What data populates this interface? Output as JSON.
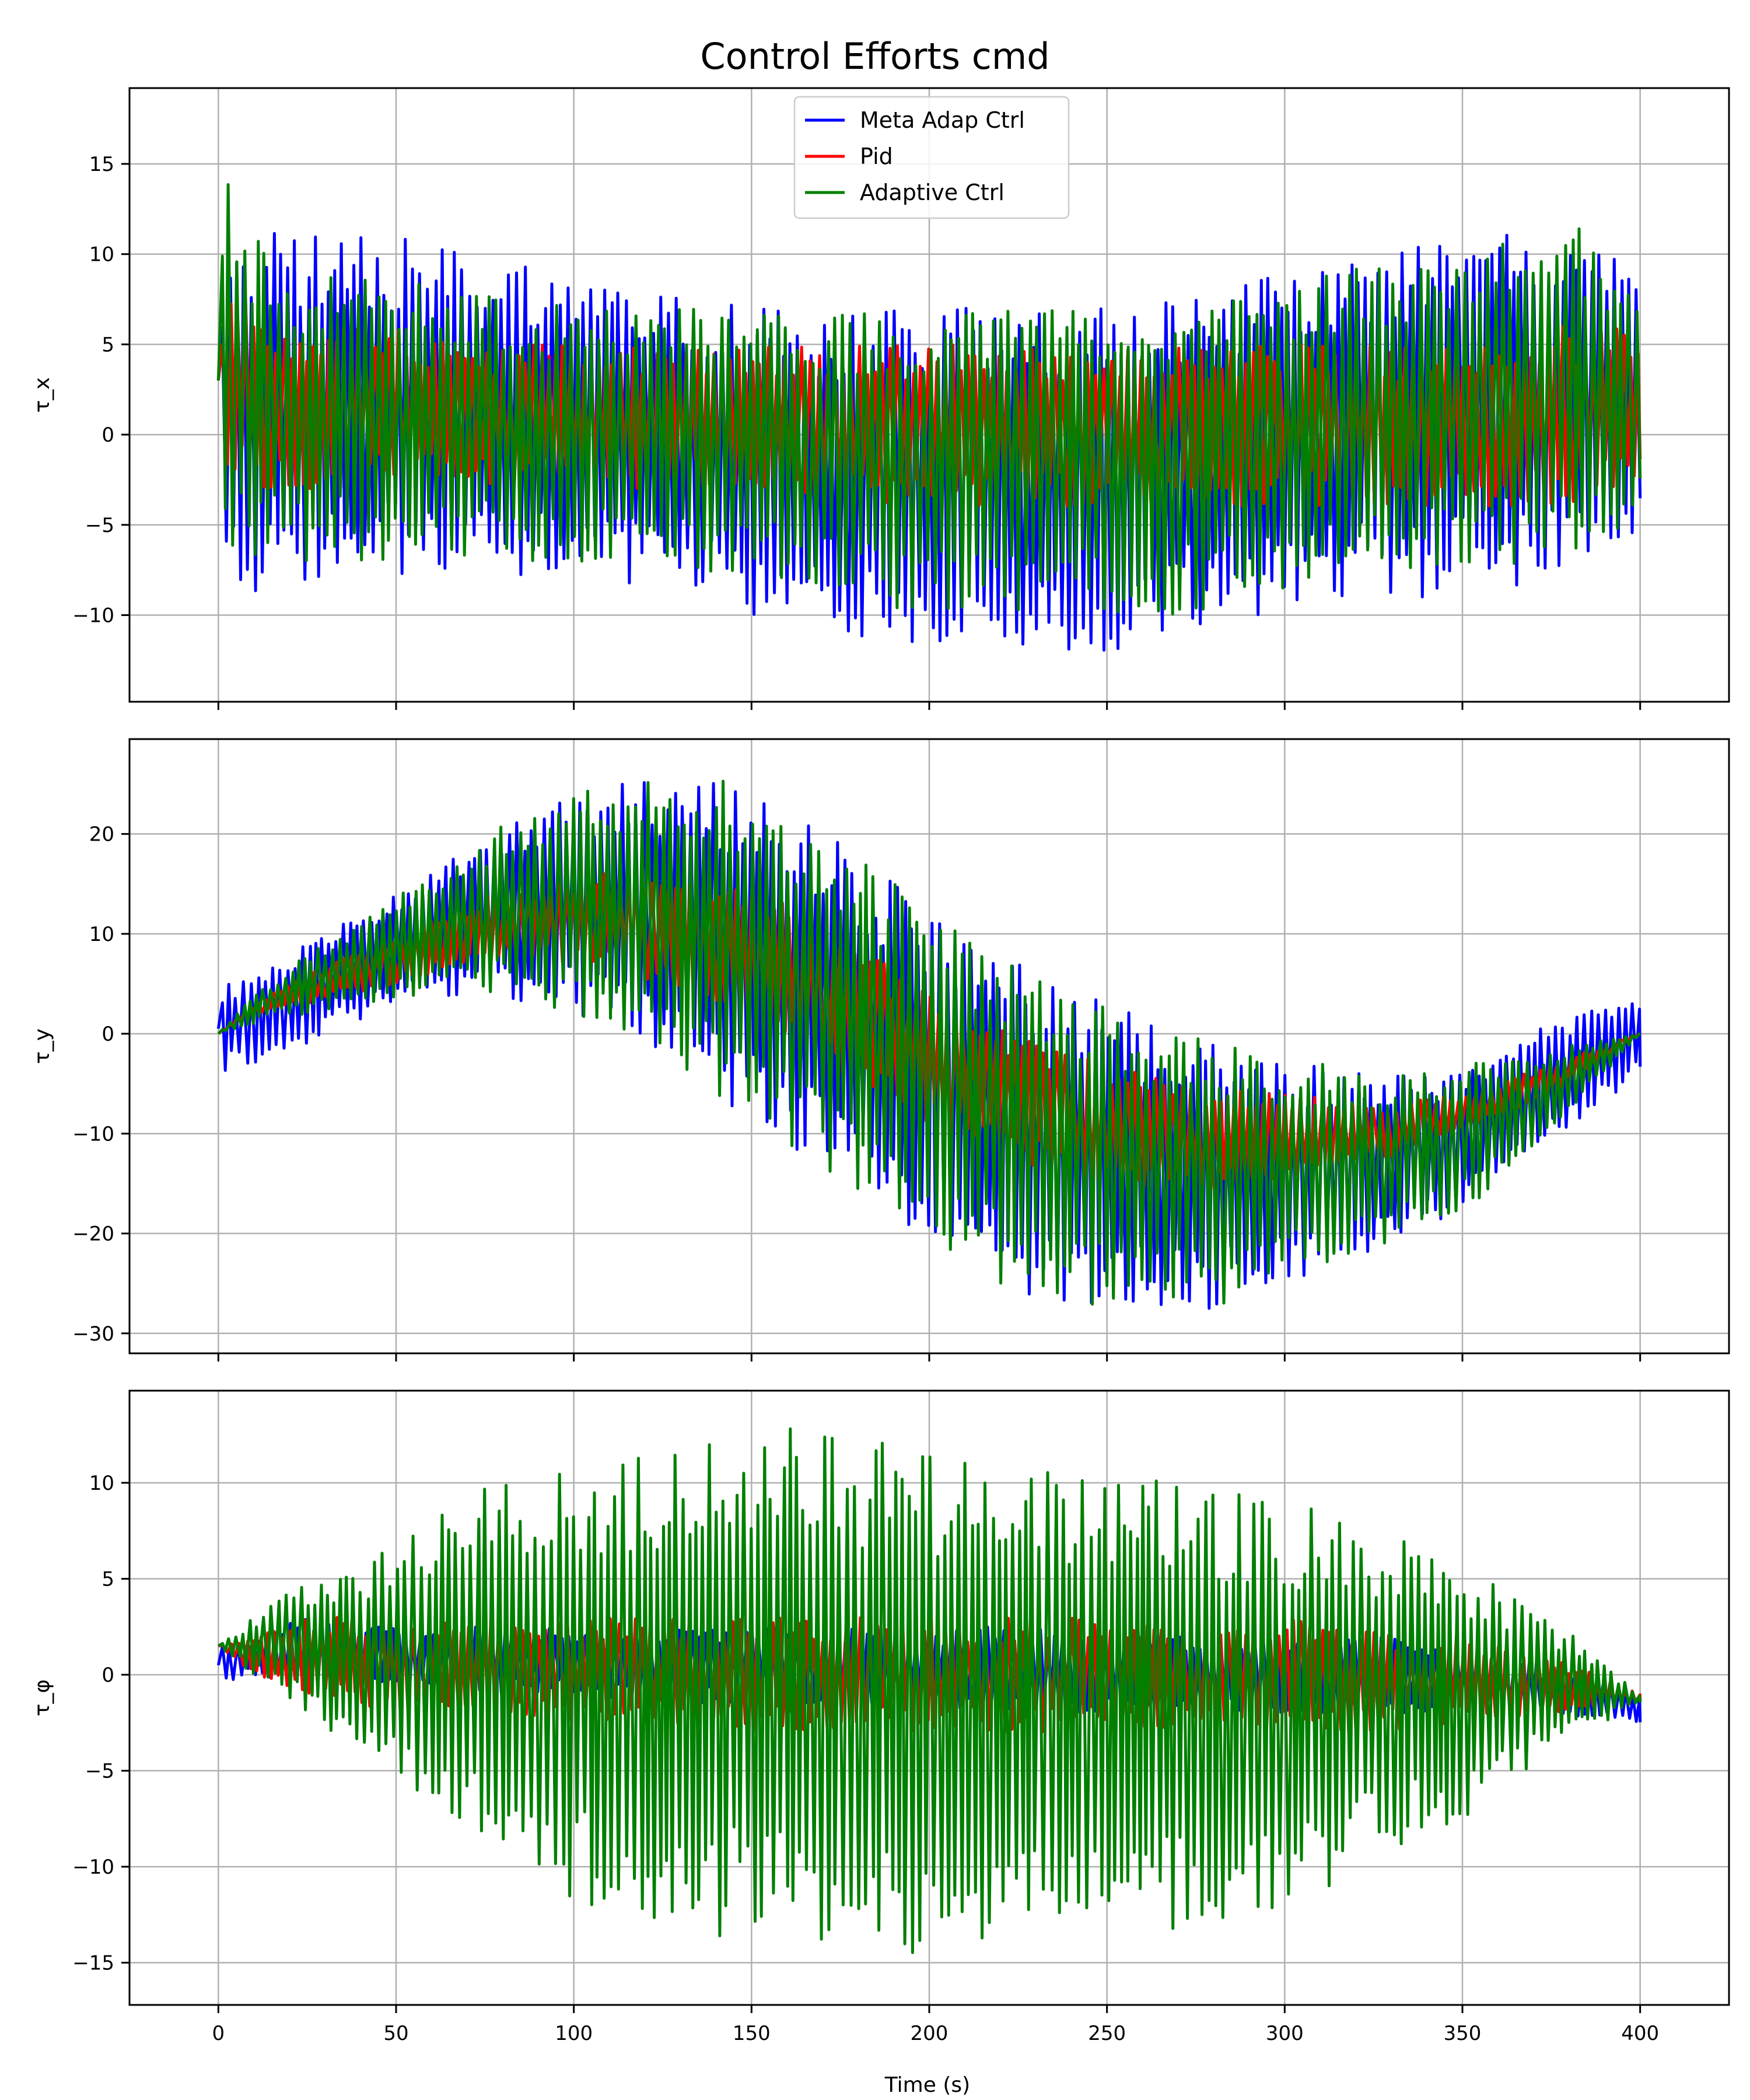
{
  "chart_data": {
    "type": "line",
    "title": "Control Efforts cmd",
    "xlabel": "Time (s)",
    "legend": {
      "placement": "top-center of first subplot",
      "entries": [
        {
          "name": "Meta Adap Ctrl",
          "color": "#0000ff"
        },
        {
          "name": "Pid",
          "color": "#ff0000"
        },
        {
          "name": "Adaptive Ctrl",
          "color": "#008000"
        }
      ]
    },
    "x_ticks": [
      "0",
      "50",
      "100",
      "150",
      "200",
      "250",
      "300",
      "350",
      "400"
    ],
    "xlim": [
      -25,
      425
    ],
    "grid": true,
    "subplots": [
      {
        "ylabel": "τ_x",
        "ylim": [
          -14.8,
          19.2
        ],
        "y_ticks": [
          {
            "value": -10,
            "label": "−10"
          },
          {
            "value": -5,
            "label": "−5"
          },
          {
            "value": 0,
            "label": "0"
          },
          {
            "value": 5,
            "label": "5"
          },
          {
            "value": 10,
            "label": "10"
          },
          {
            "value": 15,
            "label": "15"
          }
        ],
        "envelope_points": {
          "t": [
            0,
            2,
            10,
            25,
            50,
            75,
            100,
            125,
            150,
            175,
            200,
            225,
            250,
            275,
            300,
            325,
            350,
            375,
            400
          ],
          "meta_upper": [
            3,
            12,
            12,
            11,
            11,
            10,
            9,
            8,
            7,
            7,
            7,
            7,
            7,
            8,
            9,
            10,
            11,
            12,
            11
          ],
          "meta_lower": [
            3,
            -9,
            -9,
            -8,
            -8,
            -8,
            -8,
            -9,
            -10,
            -11,
            -12,
            -12,
            -12,
            -11,
            -10,
            -9,
            -9,
            -8,
            -6
          ],
          "adaptive_upper": [
            3,
            16,
            11,
            9,
            9,
            8,
            7,
            7,
            7,
            7,
            7,
            7,
            7,
            8,
            9,
            10,
            10,
            13,
            9
          ],
          "adaptive_lower": [
            3,
            -6,
            -7,
            -7,
            -7,
            -7,
            -7,
            -8,
            -8,
            -9,
            -10,
            -10,
            -10,
            -10,
            -9,
            -8,
            -8,
            -7,
            -5
          ],
          "pid_upper": [
            3,
            9,
            7,
            6,
            6,
            5,
            5,
            5,
            5,
            5,
            5,
            5,
            5,
            5,
            5,
            5,
            5,
            6,
            6
          ],
          "pid_lower": [
            3,
            -3,
            -3,
            -3,
            -3,
            -3,
            -3,
            -3,
            -3,
            -4,
            -4,
            -4,
            -4,
            -4,
            -4,
            -4,
            -4,
            -4,
            -3
          ]
        }
      },
      {
        "ylabel": "τ_y",
        "ylim": [
          -32,
          29.5
        ],
        "y_ticks": [
          {
            "value": -30,
            "label": "−30"
          },
          {
            "value": -20,
            "label": "−20"
          },
          {
            "value": -10,
            "label": "−10"
          },
          {
            "value": 0,
            "label": "0"
          },
          {
            "value": 10,
            "label": "10"
          },
          {
            "value": 20,
            "label": "20"
          }
        ],
        "envelope_points": {
          "t": [
            0,
            10,
            25,
            50,
            75,
            100,
            125,
            150,
            175,
            200,
            225,
            250,
            275,
            300,
            325,
            350,
            375,
            400
          ],
          "meta_upper": [
            5,
            6,
            9,
            14,
            20,
            24,
            26,
            25,
            20,
            12,
            7,
            3,
            0,
            -2,
            -4,
            -3,
            1,
            4
          ],
          "meta_lower": [
            -4,
            -3,
            -1,
            3,
            4,
            2,
            -2,
            -9,
            -15,
            -21,
            -26,
            -28,
            -28,
            -25,
            -22,
            -18,
            -11,
            -4
          ],
          "adaptive_upper": [
            0,
            4,
            8,
            14,
            20,
            24,
            26,
            25,
            20,
            12,
            7,
            3,
            0,
            -2,
            -4,
            -3,
            -1,
            0
          ],
          "adaptive_lower": [
            0,
            1,
            2,
            3,
            4,
            2,
            -2,
            -9,
            -15,
            -21,
            -26,
            -28,
            -28,
            -25,
            -22,
            -18,
            -10,
            0
          ],
          "pid_upper": [
            0,
            3,
            6,
            10,
            14,
            16,
            17,
            15,
            10,
            4,
            0,
            -3,
            -5,
            -6,
            -7,
            -6,
            -3,
            0
          ],
          "pid_lower": [
            0,
            2,
            3,
            5,
            7,
            7,
            5,
            1,
            -4,
            -9,
            -13,
            -15,
            -16,
            -15,
            -13,
            -10,
            -6,
            0
          ]
        }
      },
      {
        "ylabel": "τ_φ",
        "ylim": [
          -17.2,
          14.8
        ],
        "y_ticks": [
          {
            "value": -15,
            "label": "−15"
          },
          {
            "value": -10,
            "label": "−10"
          },
          {
            "value": -5,
            "label": "−5"
          },
          {
            "value": 0,
            "label": "0"
          },
          {
            "value": 5,
            "label": "5"
          },
          {
            "value": 10,
            "label": "10"
          }
        ],
        "envelope_points": {
          "t": [
            0,
            10,
            25,
            50,
            75,
            100,
            125,
            150,
            175,
            200,
            225,
            250,
            275,
            300,
            325,
            350,
            375,
            400
          ],
          "meta_upper": [
            1.5,
            2,
            3,
            2.5,
            2.5,
            2.5,
            2.5,
            2.5,
            2.5,
            2.5,
            2.5,
            2.5,
            2,
            2,
            2,
            1.5,
            0.5,
            -1
          ],
          "meta_lower": [
            -0.5,
            0,
            -0.5,
            -0.5,
            -1,
            -1,
            -1.5,
            -1.5,
            -1.5,
            -2,
            -2,
            -2,
            -2,
            -2,
            -2,
            -2,
            -2,
            -2.5
          ],
          "adaptive_upper": [
            1.5,
            3,
            5,
            7,
            10,
            11,
            12,
            13,
            13,
            12,
            11,
            11,
            10,
            9,
            8,
            6,
            3,
            -1
          ],
          "adaptive_lower": [
            1.5,
            0,
            -2,
            -6,
            -9,
            -12,
            -13,
            -14,
            -15,
            -15,
            -14,
            -14,
            -13,
            -12,
            -10,
            -8,
            -4,
            -1.5
          ],
          "pid_upper": [
            1.5,
            2,
            3,
            3,
            3,
            3,
            3,
            3,
            3,
            3,
            3,
            3,
            3,
            3,
            2.5,
            2,
            1,
            -1
          ],
          "pid_lower": [
            1.5,
            0,
            -1,
            -2,
            -2,
            -2.5,
            -2.5,
            -3,
            -3,
            -3,
            -3,
            -3,
            -3,
            -3,
            -3,
            -2.5,
            -2,
            -1.5
          ]
        }
      }
    ]
  },
  "colors": {
    "meta": "#0000ff",
    "pid": "#ff0000",
    "adaptive": "#008000",
    "grid": "#b0b0b0"
  }
}
